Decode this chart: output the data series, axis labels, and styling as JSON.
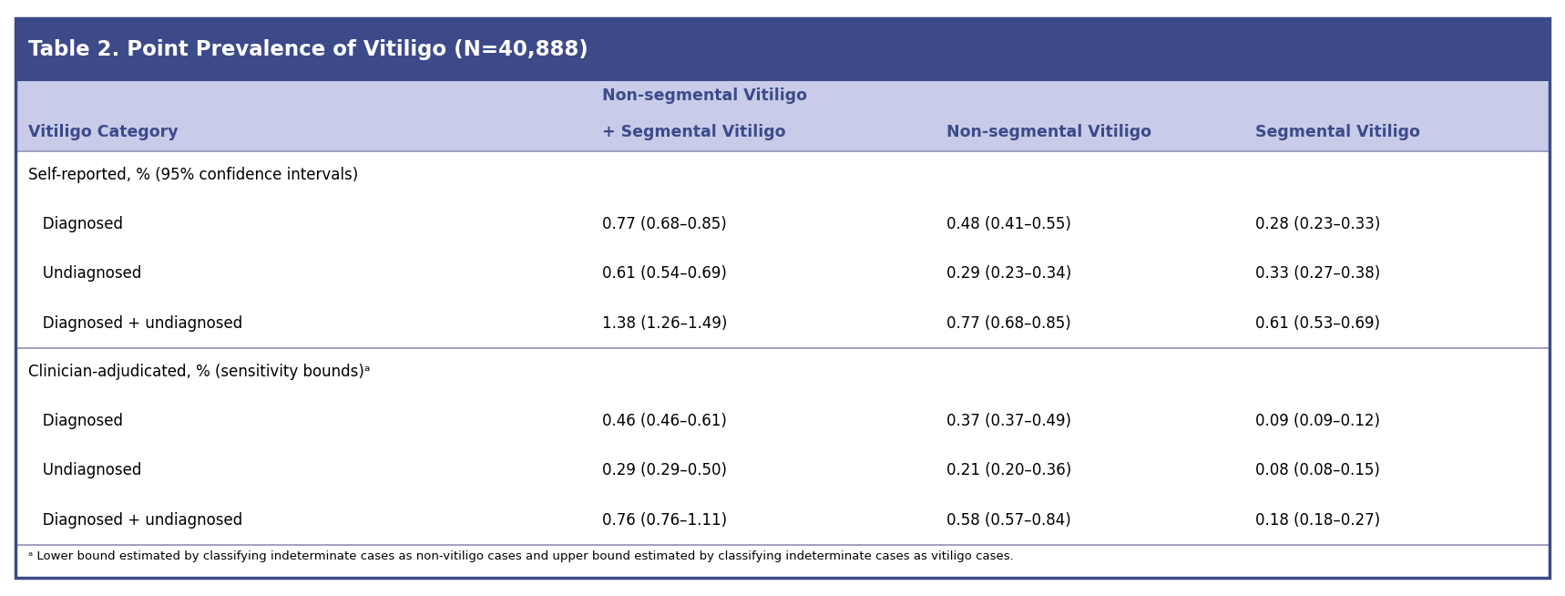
{
  "title": "Table 2. Point Prevalence of Vitiligo (N=40,888)",
  "title_bg": "#3d4a8a",
  "title_color": "#ffffff",
  "header_bg": "#c8cce8",
  "header_color": "#3d4a8a",
  "body_bg": "#ffffff",
  "body_color": "#000000",
  "columns": [
    "Vitiligo Category",
    "Non-segmental Vitiligo\n+ Segmental Vitiligo",
    "Non-segmental Vitiligo",
    "Segmental Vitiligo"
  ],
  "sections": [
    {
      "section_label": "Self-reported, % (95% confidence intervals)",
      "rows": [
        [
          "   Diagnosed",
          "0.77 (0.68–0.85)",
          "0.48 (0.41–0.55)",
          "0.28 (0.23–0.33)"
        ],
        [
          "   Undiagnosed",
          "0.61 (0.54–0.69)",
          "0.29 (0.23–0.34)",
          "0.33 (0.27–0.38)"
        ],
        [
          "   Diagnosed + undiagnosed",
          "1.38 (1.26–1.49)",
          "0.77 (0.68–0.85)",
          "0.61 (0.53–0.69)"
        ]
      ]
    },
    {
      "section_label": "Clinician-adjudicated, % (sensitivity bounds)ᵃ",
      "rows": [
        [
          "   Diagnosed",
          "0.46 (0.46–0.61)",
          "0.37 (0.37–0.49)",
          "0.09 (0.09–0.12)"
        ],
        [
          "   Undiagnosed",
          "0.29 (0.29–0.50)",
          "0.21 (0.20–0.36)",
          "0.08 (0.08–0.15)"
        ],
        [
          "   Diagnosed + undiagnosed",
          "0.76 (0.76–1.11)",
          "0.58 (0.57–0.84)",
          "0.18 (0.18–0.27)"
        ]
      ]
    }
  ],
  "footnote": "ᵃ Lower bound estimated by classifying indeterminate cases as non-vitiligo cases and upper bound estimated by classifying indeterminate cases as vitiligo cases.",
  "table_border_color": "#3d4a8a",
  "divider_color": "#9999bb"
}
